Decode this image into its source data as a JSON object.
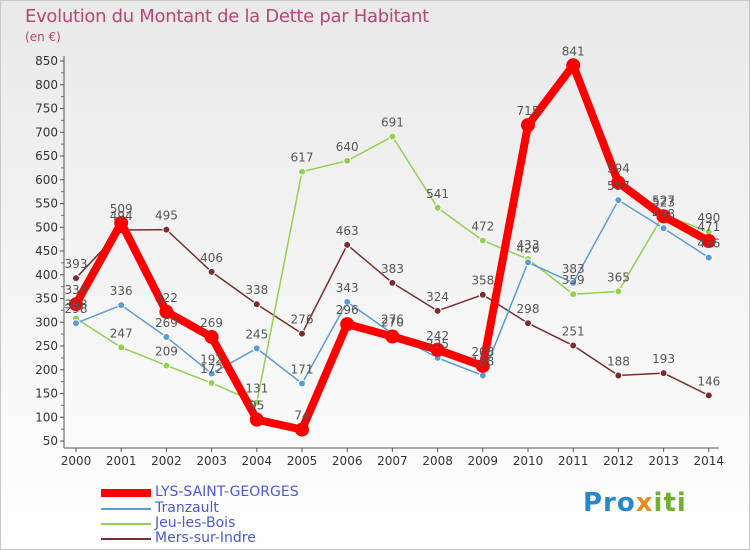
{
  "chart_data": {
    "type": "line",
    "title": "Evolution du Montant de la Dette par Habitant",
    "ylabel": "(en €)",
    "xlabel": "",
    "x": [
      "2000",
      "2001",
      "2002",
      "2003",
      "2004",
      "2005",
      "2006",
      "2007",
      "2008",
      "2009",
      "2010",
      "2011",
      "2012",
      "2013",
      "2014"
    ],
    "ylim": [
      50,
      850
    ],
    "yticks": [
      50,
      100,
      150,
      200,
      250,
      300,
      350,
      400,
      450,
      500,
      550,
      600,
      650,
      700,
      750,
      800,
      850
    ],
    "grid": false,
    "legend_position": "bottom-left",
    "series": [
      {
        "name": "LYS-SAINT-GEORGES",
        "color": "#ff0000",
        "values": [
          338,
          509,
          322,
          269,
          95,
          74,
          296,
          270,
          242,
          208,
          715,
          841,
          594,
          523,
          471
        ]
      },
      {
        "name": "Tranzault",
        "color": "#5b9bd5",
        "values": [
          298,
          336,
          269,
          192,
          245,
          171,
          343,
          276,
          225,
          188,
          426,
          383,
          557,
          498,
          436
        ]
      },
      {
        "name": "Jeu-les-Bois",
        "color": "#92d050",
        "values": [
          308,
          247,
          209,
          172,
          131,
          617,
          640,
          691,
          541,
          472,
          433,
          359,
          365,
          527,
          490
        ]
      },
      {
        "name": "Mers-sur-Indre",
        "color": "#7b2d2d",
        "values": [
          393,
          494,
          495,
          406,
          338,
          276,
          463,
          383,
          324,
          358,
          298,
          251,
          188,
          193,
          146
        ]
      }
    ]
  },
  "logo": {
    "part1": "Pro",
    "part2": "x",
    "part3": "iti"
  }
}
